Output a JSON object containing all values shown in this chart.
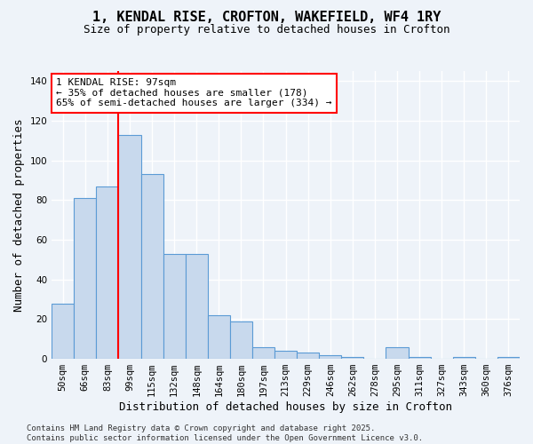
{
  "title_line1": "1, KENDAL RISE, CROFTON, WAKEFIELD, WF4 1RY",
  "title_line2": "Size of property relative to detached houses in Crofton",
  "xlabel": "Distribution of detached houses by size in Crofton",
  "ylabel": "Number of detached properties",
  "footer": "Contains HM Land Registry data © Crown copyright and database right 2025.\nContains public sector information licensed under the Open Government Licence v3.0.",
  "bin_labels": [
    "50sqm",
    "66sqm",
    "83sqm",
    "99sqm",
    "115sqm",
    "132sqm",
    "148sqm",
    "164sqm",
    "180sqm",
    "197sqm",
    "213sqm",
    "229sqm",
    "246sqm",
    "262sqm",
    "278sqm",
    "295sqm",
    "311sqm",
    "327sqm",
    "343sqm",
    "360sqm",
    "376sqm"
  ],
  "bar_values": [
    28,
    81,
    87,
    113,
    93,
    53,
    53,
    22,
    19,
    6,
    4,
    3,
    2,
    1,
    0,
    6,
    1,
    0,
    1,
    0,
    1
  ],
  "bar_color": "#c8d9ed",
  "bar_edge_color": "#5b9bd5",
  "ylim_max": 145,
  "yticks": [
    0,
    20,
    40,
    60,
    80,
    100,
    120,
    140
  ],
  "vline_bar_index": 3,
  "annotation_title": "1 KENDAL RISE: 97sqm",
  "annotation_line2": "← 35% of detached houses are smaller (178)",
  "annotation_line3": "65% of semi-detached houses are larger (334) →",
  "annotation_box_color": "white",
  "annotation_box_edge": "red",
  "vline_color": "red",
  "background_color": "#eef3f9",
  "grid_color": "white",
  "title_fontsize": 11,
  "subtitle_fontsize": 9,
  "axis_label_fontsize": 9,
  "tick_fontsize": 7.5,
  "annotation_fontsize": 8,
  "footer_fontsize": 6.5
}
